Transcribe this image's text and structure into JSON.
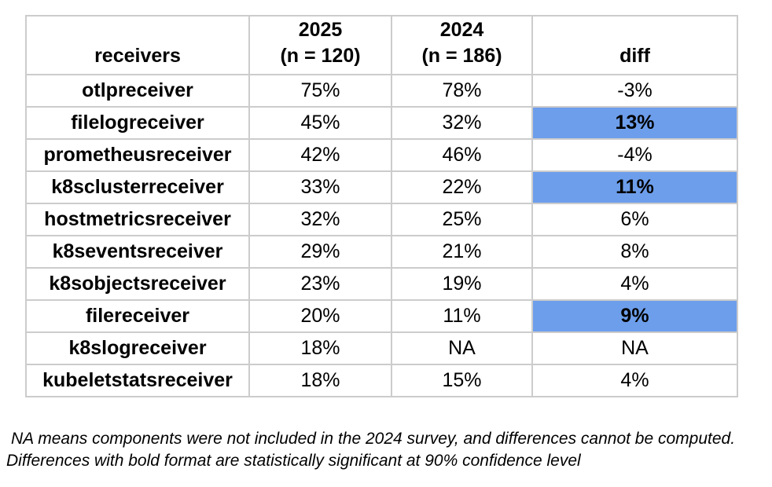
{
  "colors": {
    "highlight": "#6d9eeb",
    "border": "#cccccc",
    "text": "#000000"
  },
  "chart_data": {
    "type": "table",
    "columns": [
      "receivers",
      "2025 (n = 120)",
      "2024 (n = 186)",
      "diff"
    ],
    "header": {
      "col1": "receivers",
      "col2_line1": "2025",
      "col2_line2": "(n = 120)",
      "col3_line1": "2024",
      "col3_line2": "(n = 186)",
      "col4": "diff"
    },
    "rows": [
      {
        "receiver": "otlpreceiver",
        "y2025": "75%",
        "y2024": "78%",
        "diff": "-3%",
        "significant": false
      },
      {
        "receiver": "filelogreceiver",
        "y2025": "45%",
        "y2024": "32%",
        "diff": "13%",
        "significant": true
      },
      {
        "receiver": "prometheusreceiver",
        "y2025": "42%",
        "y2024": "46%",
        "diff": "-4%",
        "significant": false
      },
      {
        "receiver": "k8sclusterreceiver",
        "y2025": "33%",
        "y2024": "22%",
        "diff": "11%",
        "significant": true
      },
      {
        "receiver": "hostmetricsreceiver",
        "y2025": "32%",
        "y2024": "25%",
        "diff": "6%",
        "significant": false
      },
      {
        "receiver": "k8seventsreceiver",
        "y2025": "29%",
        "y2024": "21%",
        "diff": "8%",
        "significant": false
      },
      {
        "receiver": "k8sobjectsreceiver",
        "y2025": "23%",
        "y2024": "19%",
        "diff": "4%",
        "significant": false
      },
      {
        "receiver": "filereceiver",
        "y2025": "20%",
        "y2024": "11%",
        "diff": "9%",
        "significant": true
      },
      {
        "receiver": "k8slogreceiver",
        "y2025": "18%",
        "y2024": "NA",
        "diff": "NA",
        "significant": false
      },
      {
        "receiver": "kubeletstatsreceiver",
        "y2025": "18%",
        "y2024": "15%",
        "diff": "4%",
        "significant": false
      }
    ],
    "notes": [
      "NA means components were not included in the 2024 survey, and differences cannot be computed.",
      "Differences with bold format are statistically significant at 90% confidence level"
    ]
  }
}
